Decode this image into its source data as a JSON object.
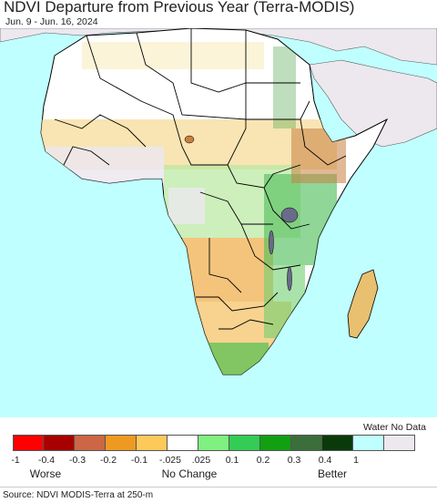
{
  "title": "NDVI Departure from Previous Year (Terra-MODIS)",
  "subtitle": "Jun. 9 - Jun. 16, 2024",
  "legend": {
    "water_label": "Water No Data",
    "swatches": [
      {
        "color": "#ff0000"
      },
      {
        "color": "#a80000"
      },
      {
        "color": "#cc6644"
      },
      {
        "color": "#ee9922"
      },
      {
        "color": "#fdc95a"
      },
      {
        "color": "#ffffff"
      },
      {
        "color": "#80f080"
      },
      {
        "color": "#33cc55"
      },
      {
        "color": "#11a011"
      },
      {
        "color": "#3a6e3a"
      },
      {
        "color": "#0a3a0a"
      },
      {
        "color": "#c0ffff"
      },
      {
        "color": "#ece8ee"
      }
    ],
    "ticks": [
      "-1",
      "-0.4",
      "-0.3",
      "-0.2",
      "-0.1",
      "-.025",
      ".025",
      "0.1",
      "0.2",
      "0.3",
      "0.4",
      "1"
    ],
    "quality_labels": [
      "Worse",
      "No Change",
      "Better"
    ]
  },
  "source": "Source: NDVI MODIS-Terra at 250-m",
  "colors": {
    "ocean": "#c0ffff",
    "no_data_land": "#ece8ee",
    "no_change_land": "#ffffff",
    "border": "#000000"
  }
}
